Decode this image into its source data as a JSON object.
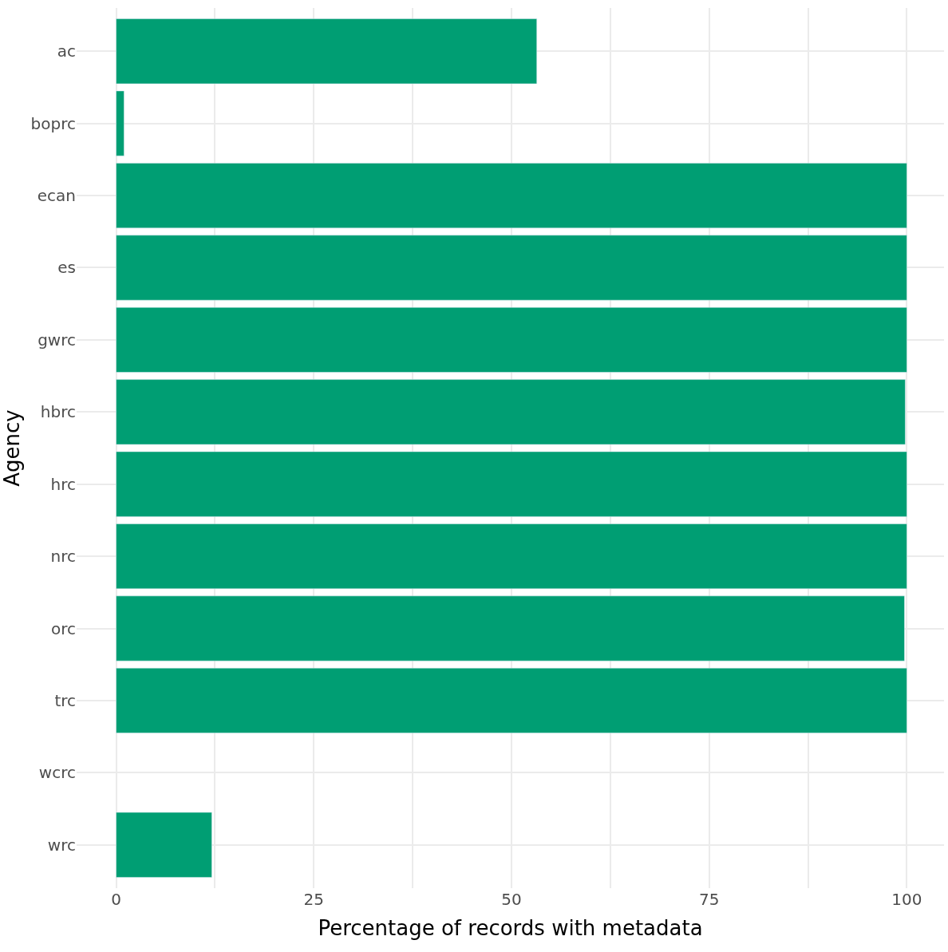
{
  "chart_data": {
    "type": "bar",
    "orientation": "horizontal",
    "xlabel": "Percentage of records with metadata",
    "ylabel": "Agency",
    "categories": [
      "ac",
      "boprc",
      "ecan",
      "es",
      "gwrc",
      "hbrc",
      "hrc",
      "nrc",
      "orc",
      "trc",
      "wcrc",
      "wrc"
    ],
    "values": [
      53.2,
      1.0,
      100,
      100,
      100,
      99.8,
      100,
      100,
      99.7,
      100,
      null,
      12.1
    ],
    "color": "#009e73",
    "xlim": [
      -5,
      104.7
    ],
    "xticks": [
      0,
      {
        "value": 12.5,
        "label": null
      },
      25,
      {
        "value": 37.5,
        "label": null
      },
      50,
      {
        "value": 62.5,
        "label": null
      },
      75,
      {
        "value": 87.5,
        "label": null
      },
      100
    ],
    "grid": true
  }
}
